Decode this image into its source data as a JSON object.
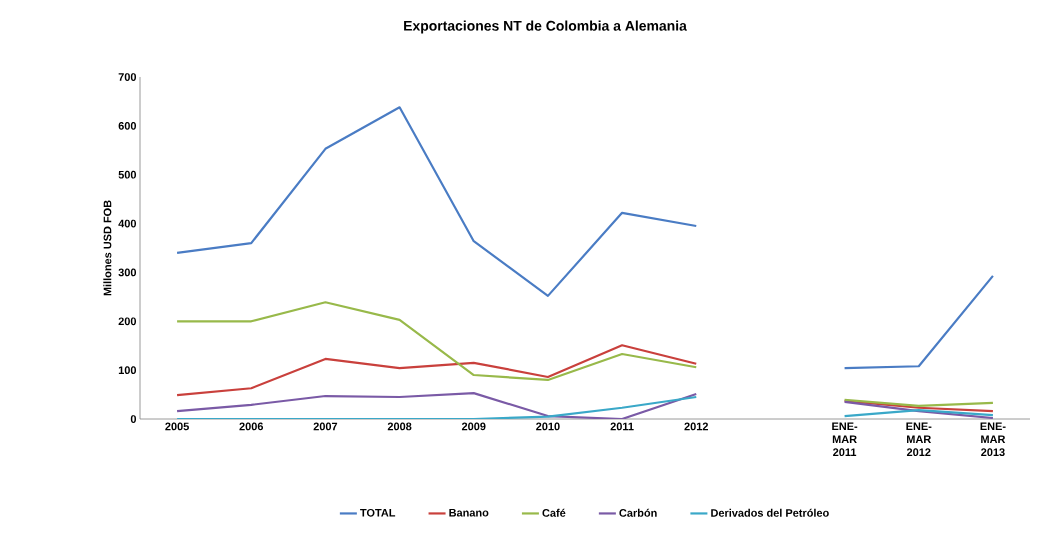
{
  "chart_data": {
    "type": "line",
    "title": "Exportaciones NT de Colombia a Alemania",
    "ylabel": "Millones USD FOB",
    "categories": [
      "2005",
      "2006",
      "2007",
      "2008",
      "2009",
      "2010",
      "2011",
      "2012",
      null,
      "ENE-MAR 2011",
      "ENE-MAR 2012",
      "ENE-MAR 2013"
    ],
    "series": [
      {
        "name": "TOTAL",
        "color": "#4a7cc4",
        "values": [
          340,
          360,
          553,
          638,
          364,
          252,
          422,
          395,
          null,
          104,
          108,
          293
        ]
      },
      {
        "name": "Banano",
        "color": "#c9403c",
        "values": [
          49,
          63,
          123,
          104,
          115,
          86,
          151,
          113,
          null,
          37,
          23,
          16
        ]
      },
      {
        "name": "Café",
        "color": "#98b94a",
        "values": [
          200,
          200,
          239,
          203,
          90,
          80,
          133,
          106,
          null,
          39,
          27,
          33
        ]
      },
      {
        "name": "Carbón",
        "color": "#7a5aa6",
        "values": [
          16,
          29,
          47,
          45,
          53,
          6,
          0,
          51,
          null,
          35,
          16,
          2
        ]
      },
      {
        "name": "Derivados del Petróleo",
        "color": "#3aa8c8",
        "values": [
          0,
          0,
          0,
          0,
          0,
          5,
          23,
          45,
          null,
          6,
          18,
          8
        ]
      }
    ],
    "ylim": [
      0,
      700
    ],
    "yticks": [
      0,
      100,
      200,
      300,
      400,
      500,
      600,
      700
    ],
    "legend": "bottom"
  }
}
